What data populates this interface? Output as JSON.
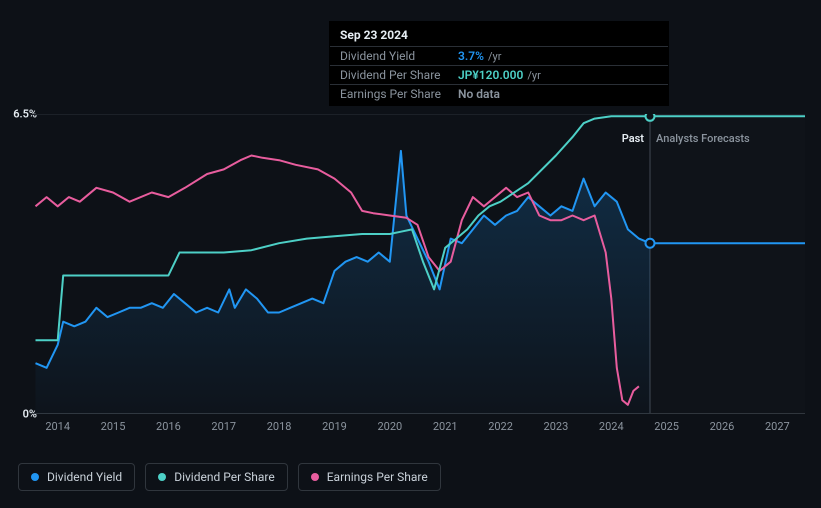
{
  "chart": {
    "type": "line",
    "background_color": "#0d1117",
    "grid_color": "#1c2128",
    "axis_text_color": "#8b949e",
    "ylabel_max": "6.5%",
    "ylabel_min": "0%",
    "ylim": [
      0,
      6.5
    ],
    "x_ticks": [
      "2014",
      "2015",
      "2016",
      "2017",
      "2018",
      "2019",
      "2020",
      "2021",
      "2022",
      "2023",
      "2024",
      "2025",
      "2026",
      "2027"
    ],
    "x_range": [
      2013.5,
      2027.5
    ],
    "past_future_split_x": 2024.7,
    "past_label": "Past",
    "future_label": "Analysts Forecasts",
    "series": {
      "dividend_yield": {
        "label": "Dividend Yield",
        "color": "#2196f3",
        "fill_opacity": 0.12,
        "line_width": 2,
        "points": [
          [
            2013.6,
            1.1
          ],
          [
            2013.8,
            1.0
          ],
          [
            2014.0,
            1.5
          ],
          [
            2014.1,
            2.0
          ],
          [
            2014.3,
            1.9
          ],
          [
            2014.5,
            2.0
          ],
          [
            2014.7,
            2.3
          ],
          [
            2014.9,
            2.1
          ],
          [
            2015.1,
            2.2
          ],
          [
            2015.3,
            2.3
          ],
          [
            2015.5,
            2.3
          ],
          [
            2015.7,
            2.4
          ],
          [
            2015.9,
            2.3
          ],
          [
            2016.1,
            2.6
          ],
          [
            2016.3,
            2.4
          ],
          [
            2016.5,
            2.2
          ],
          [
            2016.7,
            2.3
          ],
          [
            2016.9,
            2.2
          ],
          [
            2017.1,
            2.7
          ],
          [
            2017.2,
            2.3
          ],
          [
            2017.4,
            2.7
          ],
          [
            2017.6,
            2.5
          ],
          [
            2017.8,
            2.2
          ],
          [
            2018.0,
            2.2
          ],
          [
            2018.2,
            2.3
          ],
          [
            2018.4,
            2.4
          ],
          [
            2018.6,
            2.5
          ],
          [
            2018.8,
            2.4
          ],
          [
            2019.0,
            3.1
          ],
          [
            2019.2,
            3.3
          ],
          [
            2019.4,
            3.4
          ],
          [
            2019.6,
            3.3
          ],
          [
            2019.8,
            3.5
          ],
          [
            2020.0,
            3.3
          ],
          [
            2020.2,
            5.7
          ],
          [
            2020.3,
            4.3
          ],
          [
            2020.5,
            3.8
          ],
          [
            2020.7,
            3.3
          ],
          [
            2020.9,
            2.7
          ],
          [
            2021.1,
            3.8
          ],
          [
            2021.3,
            3.7
          ],
          [
            2021.5,
            4.0
          ],
          [
            2021.7,
            4.3
          ],
          [
            2021.9,
            4.1
          ],
          [
            2022.1,
            4.3
          ],
          [
            2022.3,
            4.4
          ],
          [
            2022.5,
            4.7
          ],
          [
            2022.7,
            4.5
          ],
          [
            2022.9,
            4.3
          ],
          [
            2023.1,
            4.5
          ],
          [
            2023.3,
            4.4
          ],
          [
            2023.5,
            5.1
          ],
          [
            2023.7,
            4.5
          ],
          [
            2023.9,
            4.8
          ],
          [
            2024.1,
            4.6
          ],
          [
            2024.3,
            4.0
          ],
          [
            2024.5,
            3.8
          ],
          [
            2024.7,
            3.7
          ]
        ],
        "forecast_point": [
          2024.7,
          3.7
        ],
        "forecast_end": [
          2027.5,
          3.7
        ]
      },
      "dividend_per_share": {
        "label": "Dividend Per Share",
        "color": "#4dd0c7",
        "line_width": 2,
        "points": [
          [
            2013.6,
            1.6
          ],
          [
            2013.8,
            1.6
          ],
          [
            2014.0,
            1.6
          ],
          [
            2014.1,
            3.0
          ],
          [
            2014.3,
            3.0
          ],
          [
            2015.0,
            3.0
          ],
          [
            2016.0,
            3.0
          ],
          [
            2016.2,
            3.5
          ],
          [
            2016.4,
            3.5
          ],
          [
            2017.0,
            3.5
          ],
          [
            2017.5,
            3.55
          ],
          [
            2018.0,
            3.7
          ],
          [
            2018.5,
            3.8
          ],
          [
            2019.0,
            3.85
          ],
          [
            2019.5,
            3.9
          ],
          [
            2020.0,
            3.9
          ],
          [
            2020.2,
            3.95
          ],
          [
            2020.4,
            4.0
          ],
          [
            2020.6,
            3.3
          ],
          [
            2020.8,
            2.7
          ],
          [
            2021.0,
            3.6
          ],
          [
            2021.2,
            3.8
          ],
          [
            2021.4,
            4.0
          ],
          [
            2021.6,
            4.3
          ],
          [
            2021.8,
            4.5
          ],
          [
            2022.0,
            4.6
          ],
          [
            2022.5,
            5.0
          ],
          [
            2023.0,
            5.6
          ],
          [
            2023.3,
            6.0
          ],
          [
            2023.5,
            6.3
          ],
          [
            2023.7,
            6.4
          ],
          [
            2024.0,
            6.45
          ],
          [
            2024.5,
            6.45
          ],
          [
            2024.7,
            6.45
          ]
        ],
        "forecast_point": [
          2024.7,
          6.45
        ],
        "forecast_end": [
          2027.5,
          6.45
        ]
      },
      "earnings_per_share": {
        "label": "Earnings Per Share",
        "color": "#e85d9e",
        "line_width": 2,
        "points": [
          [
            2013.6,
            4.5
          ],
          [
            2013.8,
            4.7
          ],
          [
            2014.0,
            4.5
          ],
          [
            2014.2,
            4.7
          ],
          [
            2014.4,
            4.6
          ],
          [
            2014.7,
            4.9
          ],
          [
            2015.0,
            4.8
          ],
          [
            2015.3,
            4.6
          ],
          [
            2015.7,
            4.8
          ],
          [
            2016.0,
            4.7
          ],
          [
            2016.3,
            4.9
          ],
          [
            2016.7,
            5.2
          ],
          [
            2017.0,
            5.3
          ],
          [
            2017.3,
            5.5
          ],
          [
            2017.5,
            5.6
          ],
          [
            2017.7,
            5.55
          ],
          [
            2018.0,
            5.5
          ],
          [
            2018.3,
            5.4
          ],
          [
            2018.7,
            5.3
          ],
          [
            2019.0,
            5.1
          ],
          [
            2019.3,
            4.8
          ],
          [
            2019.5,
            4.4
          ],
          [
            2019.7,
            4.35
          ],
          [
            2020.0,
            4.3
          ],
          [
            2020.3,
            4.25
          ],
          [
            2020.5,
            4.1
          ],
          [
            2020.7,
            3.4
          ],
          [
            2020.9,
            3.1
          ],
          [
            2021.1,
            3.3
          ],
          [
            2021.3,
            4.2
          ],
          [
            2021.5,
            4.7
          ],
          [
            2021.7,
            4.5
          ],
          [
            2021.9,
            4.7
          ],
          [
            2022.1,
            4.9
          ],
          [
            2022.3,
            4.7
          ],
          [
            2022.5,
            4.8
          ],
          [
            2022.7,
            4.3
          ],
          [
            2022.9,
            4.2
          ],
          [
            2023.1,
            4.2
          ],
          [
            2023.3,
            4.3
          ],
          [
            2023.5,
            4.2
          ],
          [
            2023.7,
            4.3
          ],
          [
            2023.9,
            3.5
          ],
          [
            2024.0,
            2.5
          ],
          [
            2024.1,
            1.0
          ],
          [
            2024.2,
            0.3
          ],
          [
            2024.3,
            0.2
          ],
          [
            2024.4,
            0.5
          ],
          [
            2024.5,
            0.6
          ]
        ]
      }
    }
  },
  "tooltip": {
    "date": "Sep 23 2024",
    "rows": [
      {
        "label": "Dividend Yield",
        "value": "3.7%",
        "value_color": "#2196f3",
        "suffix": "/yr"
      },
      {
        "label": "Dividend Per Share",
        "value": "JP¥120.000",
        "value_color": "#4dd0c7",
        "suffix": "/yr"
      },
      {
        "label": "Earnings Per Share",
        "value": "No data",
        "value_color": "#8b949e",
        "suffix": ""
      }
    ]
  },
  "legend": {
    "items": [
      {
        "label": "Dividend Yield",
        "color": "#2196f3"
      },
      {
        "label": "Dividend Per Share",
        "color": "#4dd0c7"
      },
      {
        "label": "Earnings Per Share",
        "color": "#e85d9e"
      }
    ]
  }
}
